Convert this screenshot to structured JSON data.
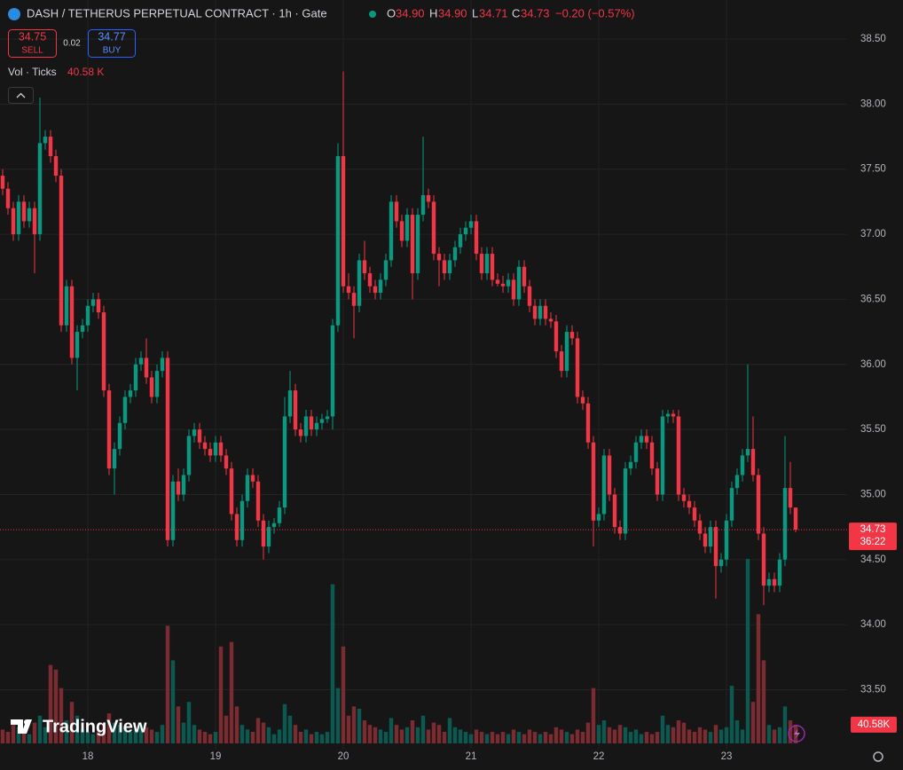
{
  "header": {
    "symbol": "DASH / TETHERUS PERPETUAL CONTRACT · 1h · Gate",
    "o_label": "O",
    "o": "34.90",
    "h_label": "H",
    "h": "34.90",
    "l_label": "L",
    "l": "34.71",
    "c_label": "C",
    "c": "34.73",
    "change": "−0.20 (−0.57%)",
    "sell_price": "34.75",
    "sell_label": "SELL",
    "spread": "0.02",
    "buy_price": "34.77",
    "buy_label": "BUY",
    "vol_label": "Vol · Ticks",
    "vol_value": "40.58 K",
    "countdown": "36:22",
    "vol_tag": "40.58K",
    "brand": "TradingView"
  },
  "chart_data": {
    "type": "candlestick",
    "up_color": "#089981",
    "down_color": "#f23645",
    "volume_up_color": "#0b5a52",
    "volume_down_color": "#7c2b31",
    "grid": true,
    "xlim": [
      -0.5,
      158.67
    ],
    "ylim": [
      33.04,
      38.8
    ],
    "xticks": [
      {
        "value": 16,
        "label": "18"
      },
      {
        "value": 40,
        "label": "19"
      },
      {
        "value": 64,
        "label": "20"
      },
      {
        "value": 88,
        "label": "21"
      },
      {
        "value": 112,
        "label": "22"
      },
      {
        "value": 136,
        "label": "23"
      }
    ],
    "yticks": [
      {
        "value": 33.5,
        "label": "33.50"
      },
      {
        "value": 34,
        "label": "34.00"
      },
      {
        "value": 34.5,
        "label": "34.50"
      },
      {
        "value": 35,
        "label": "35.00"
      },
      {
        "value": 35.5,
        "label": "35.50"
      },
      {
        "value": 36,
        "label": "36.00"
      },
      {
        "value": 36.5,
        "label": "36.50"
      },
      {
        "value": 37,
        "label": "37.00"
      },
      {
        "value": 37.5,
        "label": "37.50"
      },
      {
        "value": 38,
        "label": "38.00"
      },
      {
        "value": 38.5,
        "label": "38.50"
      }
    ],
    "candles": [
      [
        37.45,
        37.5,
        37.3,
        37.35,
        30
      ],
      [
        37.35,
        37.4,
        37.15,
        37.2,
        25
      ],
      [
        37.2,
        37.25,
        36.95,
        37.0,
        40
      ],
      [
        37.0,
        37.3,
        36.95,
        37.25,
        35
      ],
      [
        37.25,
        37.3,
        37.05,
        37.1,
        30
      ],
      [
        37.1,
        37.25,
        37.05,
        37.2,
        20
      ],
      [
        37.2,
        37.25,
        36.7,
        37.0,
        45
      ],
      [
        37.0,
        38.05,
        36.95,
        37.7,
        60
      ],
      [
        37.7,
        37.8,
        37.65,
        37.75,
        35
      ],
      [
        37.75,
        37.8,
        37.55,
        37.6,
        170
      ],
      [
        37.6,
        37.65,
        37.4,
        37.45,
        160
      ],
      [
        37.45,
        37.5,
        36.25,
        36.3,
        120
      ],
      [
        36.3,
        36.65,
        36.25,
        36.6,
        50
      ],
      [
        36.6,
        36.65,
        36.0,
        36.05,
        90
      ],
      [
        36.05,
        36.3,
        35.8,
        36.25,
        60
      ],
      [
        36.25,
        36.35,
        36.2,
        36.3,
        30
      ],
      [
        36.3,
        36.5,
        36.25,
        36.45,
        25
      ],
      [
        36.45,
        36.55,
        36.4,
        36.5,
        20
      ],
      [
        36.5,
        36.55,
        36.35,
        36.4,
        25
      ],
      [
        36.4,
        36.45,
        35.75,
        35.8,
        40
      ],
      [
        35.8,
        35.85,
        35.15,
        35.2,
        65
      ],
      [
        35.2,
        35.4,
        35.0,
        35.35,
        45
      ],
      [
        35.35,
        35.6,
        35.3,
        35.55,
        40
      ],
      [
        35.55,
        35.8,
        35.5,
        35.75,
        35
      ],
      [
        35.75,
        35.85,
        35.7,
        35.8,
        25
      ],
      [
        35.8,
        36.05,
        35.75,
        36.0,
        30
      ],
      [
        36.0,
        36.1,
        35.95,
        36.05,
        40
      ],
      [
        36.05,
        36.2,
        35.85,
        35.9,
        35
      ],
      [
        35.9,
        35.95,
        35.7,
        35.75,
        30
      ],
      [
        35.75,
        36.0,
        35.7,
        35.95,
        25
      ],
      [
        35.95,
        36.1,
        35.9,
        36.05,
        40
      ],
      [
        36.05,
        36.1,
        34.6,
        34.65,
        255
      ],
      [
        34.65,
        35.15,
        34.6,
        35.1,
        180
      ],
      [
        35.1,
        35.2,
        34.95,
        35.0,
        80
      ],
      [
        35.0,
        35.2,
        34.95,
        35.15,
        45
      ],
      [
        35.15,
        35.5,
        35.1,
        35.45,
        90
      ],
      [
        35.45,
        35.55,
        35.4,
        35.5,
        40
      ],
      [
        35.5,
        35.55,
        35.35,
        35.4,
        30
      ],
      [
        35.4,
        35.45,
        35.3,
        35.35,
        25
      ],
      [
        35.35,
        35.4,
        35.25,
        35.3,
        20
      ],
      [
        35.3,
        35.45,
        35.25,
        35.4,
        25
      ],
      [
        35.4,
        35.45,
        35.25,
        35.3,
        210
      ],
      [
        35.3,
        35.35,
        35.15,
        35.2,
        60
      ],
      [
        35.2,
        35.25,
        34.8,
        34.85,
        220
      ],
      [
        34.85,
        34.9,
        34.6,
        34.65,
        80
      ],
      [
        34.65,
        35.0,
        34.6,
        34.95,
        40
      ],
      [
        34.95,
        35.2,
        34.9,
        35.15,
        30
      ],
      [
        35.15,
        35.2,
        35.05,
        35.1,
        25
      ],
      [
        35.1,
        35.15,
        34.75,
        34.8,
        55
      ],
      [
        34.8,
        34.85,
        34.5,
        34.6,
        45
      ],
      [
        34.6,
        34.8,
        34.55,
        34.75,
        35
      ],
      [
        34.75,
        34.82,
        34.7,
        34.78,
        20
      ],
      [
        34.78,
        34.95,
        34.75,
        34.9,
        30
      ],
      [
        34.9,
        35.75,
        34.85,
        35.6,
        85
      ],
      [
        35.6,
        35.95,
        35.55,
        35.8,
        60
      ],
      [
        35.8,
        35.85,
        35.45,
        35.5,
        40
      ],
      [
        35.5,
        35.55,
        35.4,
        35.45,
        25
      ],
      [
        35.45,
        35.65,
        35.4,
        35.6,
        30
      ],
      [
        35.6,
        35.65,
        35.45,
        35.5,
        20
      ],
      [
        35.5,
        35.6,
        35.45,
        35.55,
        25
      ],
      [
        35.55,
        35.62,
        35.5,
        35.58,
        20
      ],
      [
        35.58,
        35.65,
        35.55,
        35.6,
        25
      ],
      [
        35.6,
        36.35,
        35.5,
        36.3,
        345
      ],
      [
        36.3,
        37.7,
        36.25,
        37.6,
        120
      ],
      [
        37.6,
        38.25,
        36.55,
        36.6,
        210
      ],
      [
        36.6,
        36.7,
        36.5,
        36.55,
        60
      ],
      [
        36.55,
        36.6,
        36.2,
        36.45,
        80
      ],
      [
        36.45,
        36.85,
        36.4,
        36.8,
        75
      ],
      [
        36.8,
        36.95,
        36.65,
        36.7,
        50
      ],
      [
        36.7,
        36.75,
        36.55,
        36.6,
        40
      ],
      [
        36.6,
        36.65,
        36.5,
        36.55,
        35
      ],
      [
        36.55,
        36.7,
        36.5,
        36.65,
        30
      ],
      [
        36.65,
        36.85,
        36.6,
        36.8,
        25
      ],
      [
        36.8,
        37.3,
        36.75,
        37.25,
        55
      ],
      [
        37.25,
        37.3,
        37.05,
        37.1,
        40
      ],
      [
        37.1,
        37.15,
        36.9,
        36.95,
        30
      ],
      [
        36.95,
        37.2,
        36.9,
        37.15,
        35
      ],
      [
        37.15,
        37.2,
        36.5,
        36.7,
        50
      ],
      [
        36.7,
        37.2,
        36.65,
        37.15,
        35
      ],
      [
        37.15,
        37.75,
        37.1,
        37.3,
        60
      ],
      [
        37.3,
        37.35,
        37.2,
        37.25,
        30
      ],
      [
        37.25,
        37.3,
        36.8,
        36.85,
        45
      ],
      [
        36.85,
        36.9,
        36.6,
        36.8,
        40
      ],
      [
        36.8,
        36.85,
        36.65,
        36.7,
        25
      ],
      [
        36.7,
        36.85,
        36.65,
        36.8,
        55
      ],
      [
        36.8,
        36.95,
        36.75,
        36.9,
        35
      ],
      [
        36.9,
        37.05,
        36.85,
        37.0,
        30
      ],
      [
        37.0,
        37.1,
        36.95,
        37.05,
        25
      ],
      [
        37.05,
        37.15,
        37.0,
        37.1,
        20
      ],
      [
        37.1,
        37.15,
        36.8,
        36.85,
        30
      ],
      [
        36.85,
        36.9,
        36.65,
        36.7,
        25
      ],
      [
        36.7,
        36.9,
        36.65,
        36.85,
        20
      ],
      [
        36.85,
        36.9,
        36.6,
        36.65,
        25
      ],
      [
        36.65,
        36.7,
        36.6,
        36.62,
        20
      ],
      [
        36.62,
        36.68,
        36.55,
        36.6,
        25
      ],
      [
        36.6,
        36.7,
        36.55,
        36.65,
        20
      ],
      [
        36.65,
        36.7,
        36.45,
        36.5,
        30
      ],
      [
        36.5,
        36.8,
        36.45,
        36.75,
        25
      ],
      [
        36.75,
        36.8,
        36.55,
        36.6,
        20
      ],
      [
        36.6,
        36.65,
        36.4,
        36.45,
        30
      ],
      [
        36.45,
        36.5,
        36.3,
        36.35,
        25
      ],
      [
        36.35,
        36.5,
        36.3,
        36.45,
        20
      ],
      [
        36.45,
        36.5,
        36.3,
        36.35,
        25
      ],
      [
        36.35,
        36.4,
        36.28,
        36.33,
        20
      ],
      [
        36.33,
        36.38,
        36.05,
        36.1,
        35
      ],
      [
        36.1,
        36.15,
        35.9,
        35.95,
        30
      ],
      [
        35.95,
        36.3,
        35.9,
        36.25,
        25
      ],
      [
        36.25,
        36.3,
        36.15,
        36.2,
        20
      ],
      [
        36.2,
        36.25,
        35.7,
        35.75,
        30
      ],
      [
        35.75,
        35.8,
        35.65,
        35.7,
        25
      ],
      [
        35.7,
        35.75,
        35.35,
        35.4,
        45
      ],
      [
        35.4,
        35.45,
        34.6,
        34.8,
        120
      ],
      [
        34.8,
        34.9,
        34.75,
        34.85,
        40
      ],
      [
        34.85,
        35.35,
        34.8,
        35.3,
        50
      ],
      [
        35.3,
        35.35,
        34.95,
        35.0,
        35
      ],
      [
        35.0,
        35.05,
        34.7,
        34.75,
        30
      ],
      [
        34.75,
        34.8,
        34.65,
        34.7,
        40
      ],
      [
        34.7,
        35.25,
        34.65,
        35.2,
        35
      ],
      [
        35.2,
        35.3,
        35.15,
        35.25,
        25
      ],
      [
        35.25,
        35.45,
        35.2,
        35.4,
        30
      ],
      [
        35.4,
        35.5,
        35.35,
        35.45,
        20
      ],
      [
        35.45,
        35.5,
        35.35,
        35.4,
        25
      ],
      [
        35.4,
        35.45,
        35.15,
        35.2,
        20
      ],
      [
        35.2,
        35.25,
        34.95,
        35.0,
        25
      ],
      [
        35.0,
        35.65,
        34.95,
        35.6,
        60
      ],
      [
        35.6,
        35.65,
        35.55,
        35.62,
        40
      ],
      [
        35.62,
        35.65,
        35.55,
        35.6,
        35
      ],
      [
        35.6,
        35.65,
        34.95,
        35.0,
        50
      ],
      [
        35.0,
        35.05,
        34.9,
        34.95,
        45
      ],
      [
        34.95,
        35.0,
        34.85,
        34.9,
        30
      ],
      [
        34.9,
        34.95,
        34.75,
        34.8,
        25
      ],
      [
        34.8,
        34.85,
        34.65,
        34.7,
        35
      ],
      [
        34.7,
        34.75,
        34.55,
        34.6,
        30
      ],
      [
        34.6,
        34.8,
        34.55,
        34.75,
        25
      ],
      [
        34.75,
        34.8,
        34.2,
        34.45,
        40
      ],
      [
        34.45,
        34.55,
        34.4,
        34.5,
        30
      ],
      [
        34.5,
        34.85,
        34.45,
        34.8,
        35
      ],
      [
        34.8,
        35.1,
        34.75,
        35.05,
        125
      ],
      [
        35.05,
        35.2,
        35.0,
        35.15,
        50
      ],
      [
        35.15,
        35.35,
        35.1,
        35.3,
        30
      ],
      [
        35.3,
        36.0,
        35.25,
        35.35,
        400
      ],
      [
        35.35,
        35.6,
        35.1,
        35.15,
        90
      ],
      [
        35.15,
        35.2,
        34.65,
        34.7,
        280
      ],
      [
        34.7,
        34.75,
        34.15,
        34.3,
        180
      ],
      [
        34.3,
        34.4,
        34.25,
        34.35,
        40
      ],
      [
        34.35,
        34.4,
        34.25,
        34.3,
        30
      ],
      [
        34.3,
        34.55,
        34.25,
        34.5,
        35
      ],
      [
        34.5,
        35.45,
        34.45,
        35.05,
        80
      ],
      [
        35.05,
        35.25,
        34.85,
        34.9,
        50
      ],
      [
        34.9,
        34.9,
        34.71,
        34.73,
        40.58
      ]
    ]
  }
}
